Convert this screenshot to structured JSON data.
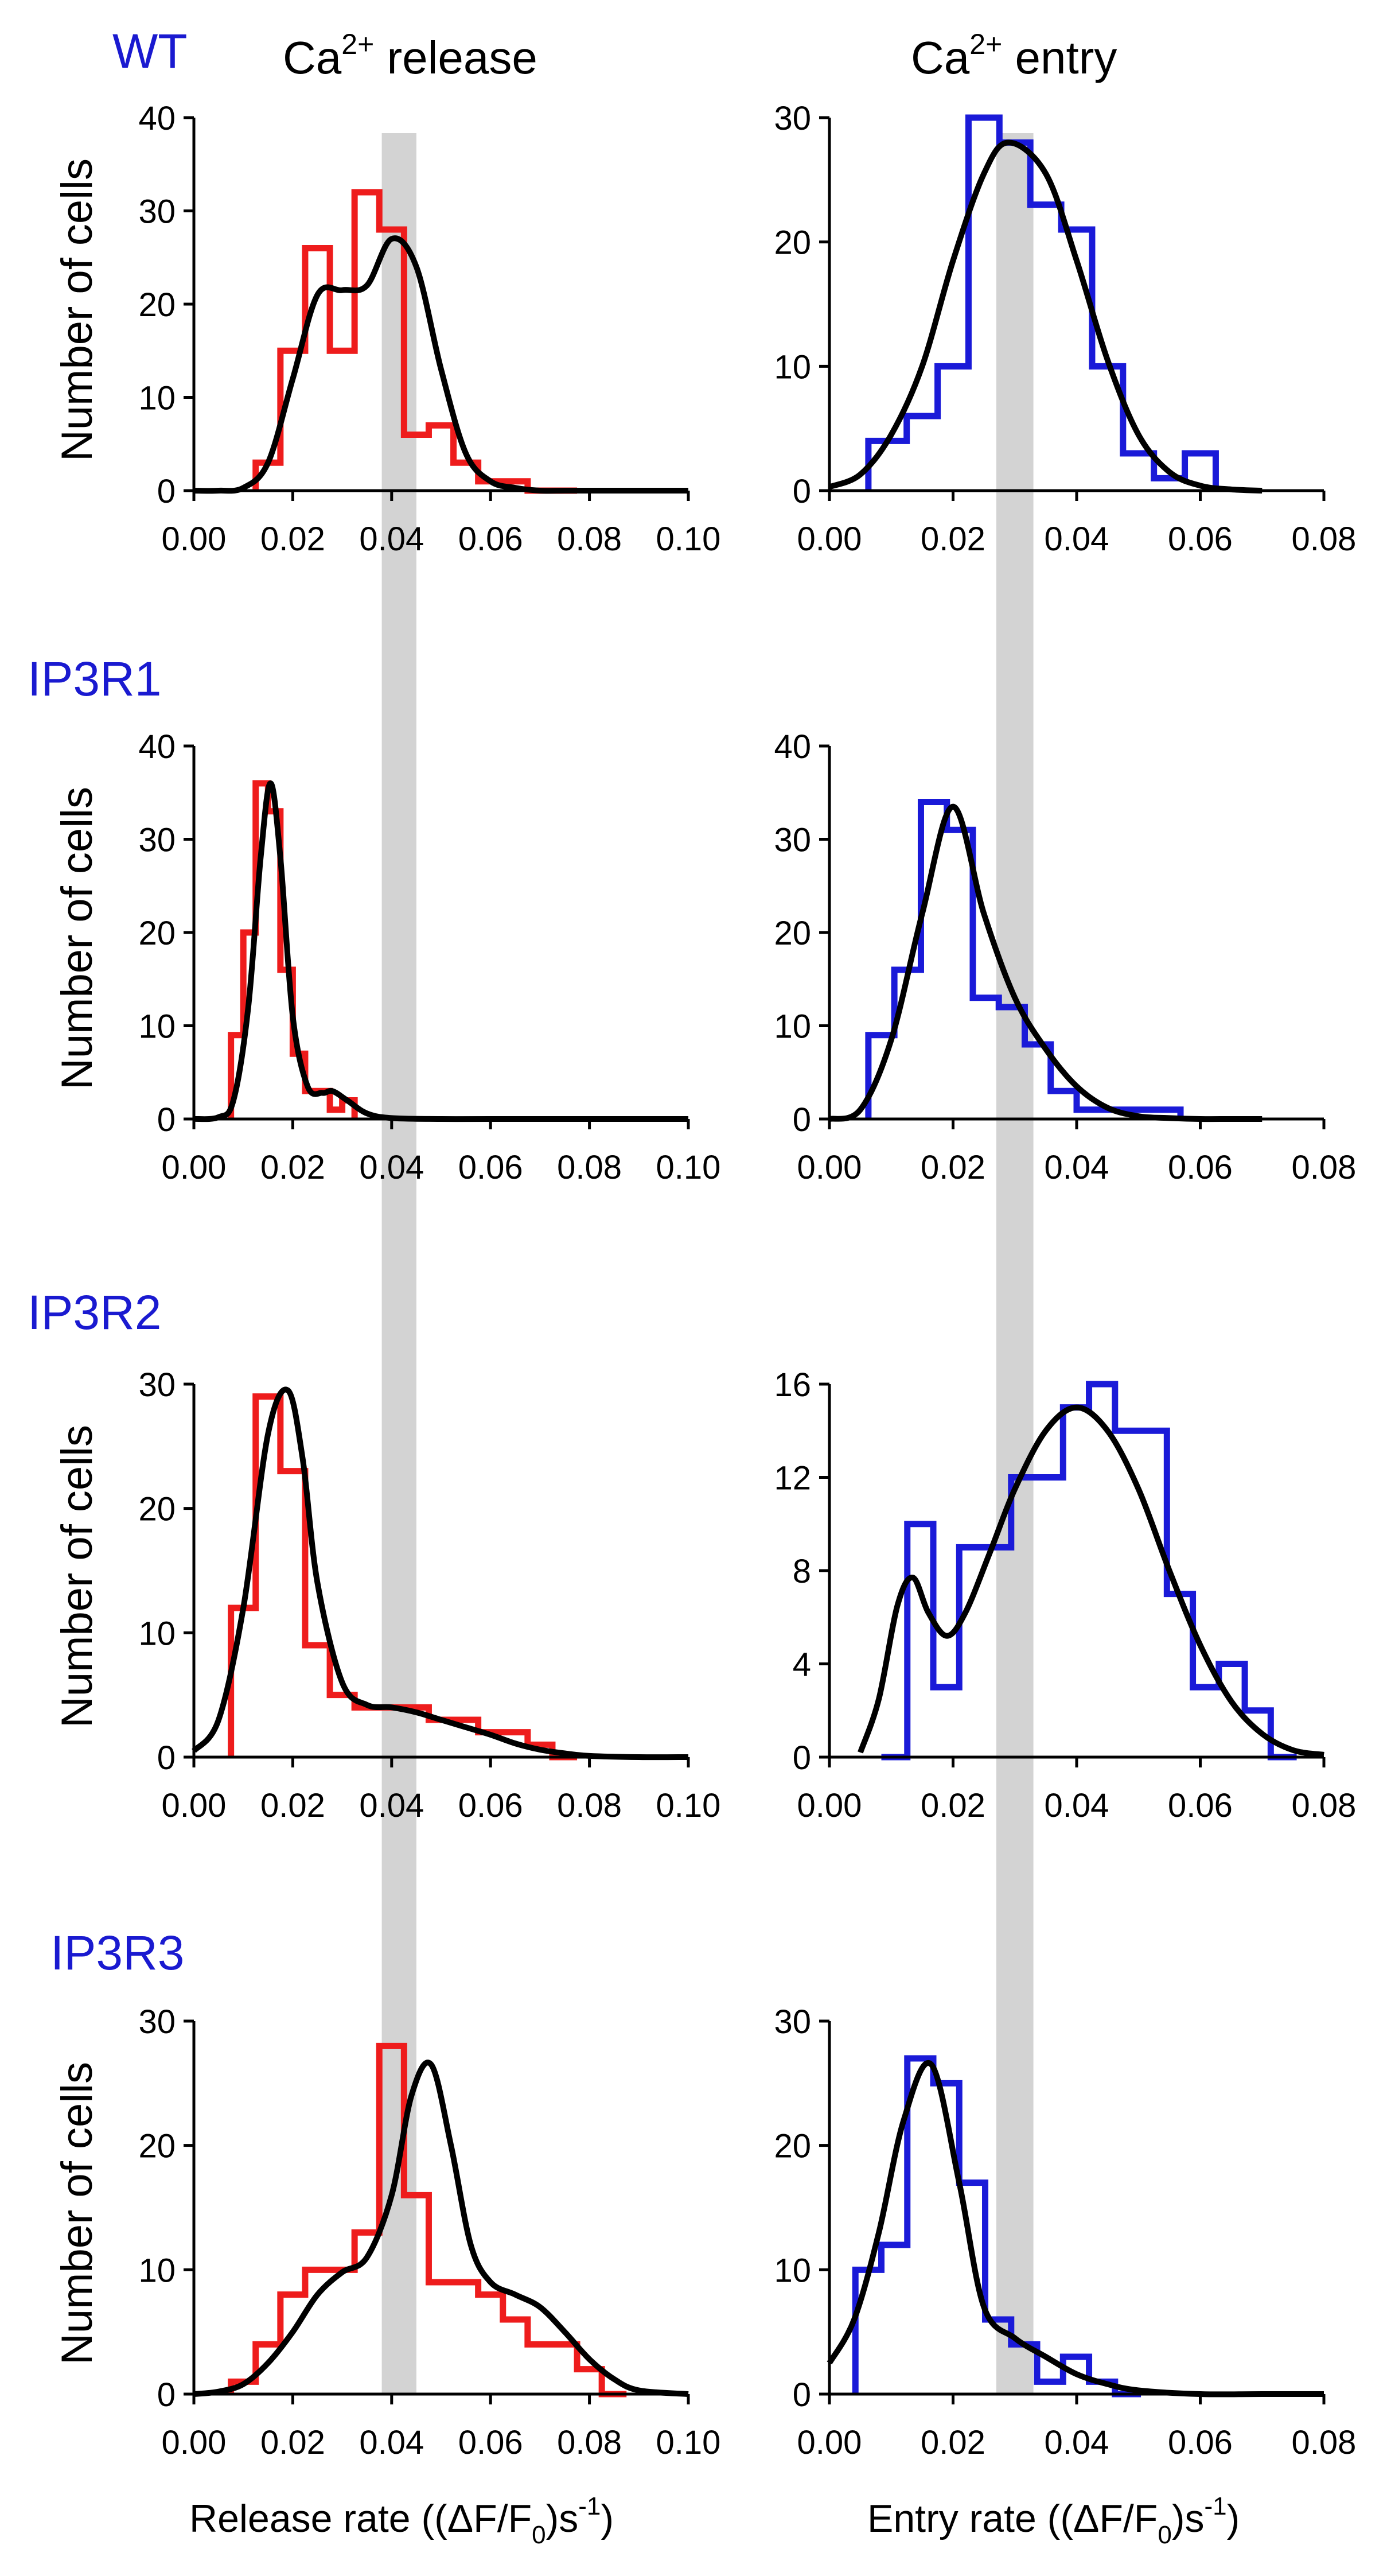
{
  "figure": {
    "column_titles": {
      "release": {
        "base": "Ca",
        "sup": "2+",
        "rest": " release"
      },
      "entry": {
        "base": "Ca",
        "sup": "2+",
        "rest": " entry"
      }
    },
    "row_labels": [
      "WT",
      "IP3R1",
      "IP3R2",
      "IP3R3"
    ],
    "ylabel": "Number of cells",
    "xlabel_release": {
      "a": "Release rate ((ΔF/F",
      "sub": "0",
      "b": ")s",
      "sup": "-1",
      "c": ")"
    },
    "xlabel_entry": {
      "a": "Entry rate ((ΔF/F",
      "sub": "0",
      "b": ")s",
      "sup": "-1",
      "c": ")"
    },
    "colors": {
      "release": "#ee1c1c",
      "entry": "#1a1ad8",
      "fit": "#000000",
      "band": "#d3d3d3",
      "row_label": "#1a1ad0"
    },
    "highlight_band": {
      "release": [
        0.038,
        0.045
      ],
      "entry": [
        0.027,
        0.033
      ]
    }
  },
  "chart_data": [
    {
      "type": "histogram",
      "row": "WT",
      "column": "Ca2+ release",
      "color": "release",
      "xlim": [
        0,
        0.1
      ],
      "ylim": [
        0,
        40
      ],
      "xticks": [
        "0.00",
        "0.02",
        "0.04",
        "0.06",
        "0.08",
        "0.10"
      ],
      "yticks": [
        "0",
        "10",
        "20",
        "30",
        "40"
      ],
      "xlabel": "",
      "ylabel": "Number of cells",
      "bins": [
        0.0125,
        0.0175,
        0.0225,
        0.0275,
        0.0325,
        0.0375,
        0.0425,
        0.0475,
        0.0525,
        0.0575,
        0.0625,
        0.0675,
        0.0725,
        0.0775
      ],
      "counts": [
        3,
        15,
        26,
        15,
        32,
        28,
        6,
        7,
        3,
        1,
        1,
        0,
        0
      ],
      "fit": {
        "x": [
          0.0,
          0.005,
          0.01,
          0.015,
          0.02,
          0.025,
          0.03,
          0.035,
          0.04,
          0.045,
          0.05,
          0.055,
          0.06,
          0.065,
          0.07,
          0.075,
          0.08,
          0.085,
          0.09,
          0.095,
          0.1
        ],
        "y": [
          0,
          0,
          0.3,
          3,
          12,
          21,
          21.5,
          22,
          27,
          24,
          13,
          4,
          1,
          0.3,
          0,
          0,
          0,
          0,
          0,
          0,
          0
        ]
      }
    },
    {
      "type": "histogram",
      "row": "WT",
      "column": "Ca2+ entry",
      "color": "entry",
      "xlim": [
        0,
        0.08
      ],
      "ylim": [
        0,
        30
      ],
      "xticks": [
        "0.00",
        "0.02",
        "0.04",
        "0.06",
        "0.08"
      ],
      "yticks": [
        "0",
        "10",
        "20",
        "30"
      ],
      "xlabel": "",
      "ylabel": "Number of cells",
      "bins": [
        0.0063,
        0.0125,
        0.0175,
        0.0225,
        0.0275,
        0.0325,
        0.0375,
        0.0425,
        0.0475,
        0.0525,
        0.0575,
        0.0625
      ],
      "counts": [
        4,
        6,
        10,
        30,
        28,
        23,
        21,
        10,
        3,
        1,
        3
      ],
      "fit": {
        "x": [
          0.0,
          0.005,
          0.01,
          0.015,
          0.02,
          0.025,
          0.029,
          0.035,
          0.04,
          0.045,
          0.05,
          0.055,
          0.06,
          0.065,
          0.07
        ],
        "y": [
          0.3,
          1.3,
          4.5,
          10,
          18.5,
          25.5,
          28,
          25.5,
          18.5,
          10.5,
          4.5,
          1.5,
          0.4,
          0.1,
          0
        ]
      }
    },
    {
      "type": "histogram",
      "row": "IP3R1",
      "column": "Ca2+ release",
      "color": "release",
      "xlim": [
        0,
        0.1
      ],
      "ylim": [
        0,
        40
      ],
      "xticks": [
        "0.00",
        "0.02",
        "0.04",
        "0.06",
        "0.08",
        "0.10"
      ],
      "yticks": [
        "0",
        "10",
        "20",
        "30",
        "40"
      ],
      "xlabel": "",
      "ylabel": "Number of cells",
      "bins": [
        0.0075,
        0.01,
        0.0125,
        0.015,
        0.0175,
        0.02,
        0.0225,
        0.025,
        0.0275,
        0.03,
        0.0325
      ],
      "counts": [
        9,
        20,
        36,
        33,
        16,
        7,
        3,
        3,
        1,
        2
      ],
      "fit": {
        "x": [
          0.0,
          0.005,
          0.008,
          0.011,
          0.0135,
          0.0155,
          0.0175,
          0.02,
          0.023,
          0.026,
          0.028,
          0.031,
          0.035,
          0.04,
          0.05,
          0.06,
          0.08,
          0.1
        ],
        "y": [
          0,
          0.2,
          2,
          12,
          28,
          36,
          28,
          11,
          3.5,
          2.8,
          3,
          2,
          0.6,
          0.1,
          0,
          0,
          0,
          0
        ]
      }
    },
    {
      "type": "histogram",
      "row": "IP3R1",
      "column": "Ca2+ entry",
      "color": "entry",
      "xlim": [
        0,
        0.08
      ],
      "ylim": [
        0,
        40
      ],
      "xticks": [
        "0.00",
        "0.02",
        "0.04",
        "0.06",
        "0.08"
      ],
      "yticks": [
        "0",
        "10",
        "20",
        "30",
        "40"
      ],
      "xlabel": "",
      "ylabel": "Number of cells",
      "bins": [
        0.0063,
        0.0105,
        0.0148,
        0.019,
        0.0232,
        0.0274,
        0.0316,
        0.0358,
        0.04,
        0.0442,
        0.0484,
        0.0526,
        0.0568
      ],
      "counts": [
        9,
        16,
        34,
        31,
        13,
        12,
        8,
        3,
        1,
        1,
        1,
        1
      ],
      "fit": {
        "x": [
          0.0,
          0.005,
          0.01,
          0.015,
          0.02,
          0.025,
          0.03,
          0.035,
          0.04,
          0.045,
          0.05,
          0.055,
          0.06,
          0.065,
          0.07
        ],
        "y": [
          0,
          1,
          8.5,
          22,
          33.5,
          22,
          13,
          7.5,
          3.5,
          1.2,
          0.3,
          0.1,
          0,
          0,
          0
        ]
      }
    },
    {
      "type": "histogram",
      "row": "IP3R2",
      "column": "Ca2+ release",
      "color": "release",
      "xlim": [
        0,
        0.1
      ],
      "ylim": [
        0,
        30
      ],
      "xticks": [
        "0.00",
        "0.02",
        "0.04",
        "0.06",
        "0.08",
        "0.10"
      ],
      "yticks": [
        "0",
        "10",
        "20",
        "30"
      ],
      "xlabel": "",
      "ylabel": "Number of cells",
      "bins": [
        0.0075,
        0.0125,
        0.0175,
        0.0225,
        0.0275,
        0.0325,
        0.0375,
        0.0425,
        0.0475,
        0.0525,
        0.0575,
        0.0625,
        0.0675,
        0.0725,
        0.0775
      ],
      "counts": [
        12,
        29,
        23,
        9,
        5,
        4,
        4,
        4,
        3,
        3,
        2,
        2,
        1,
        0
      ],
      "fit": {
        "x": [
          0.0,
          0.005,
          0.01,
          0.015,
          0.019,
          0.022,
          0.025,
          0.03,
          0.035,
          0.04,
          0.045,
          0.05,
          0.055,
          0.06,
          0.065,
          0.07,
          0.075,
          0.08,
          0.09,
          0.1
        ],
        "y": [
          0.5,
          3,
          12,
          26,
          29.5,
          24,
          14,
          6,
          4.2,
          4,
          3.6,
          3,
          2.4,
          1.8,
          1.1,
          0.6,
          0.3,
          0.1,
          0,
          0
        ]
      }
    },
    {
      "type": "histogram",
      "row": "IP3R2",
      "column": "Ca2+ entry",
      "color": "entry",
      "xlim": [
        0,
        0.08
      ],
      "ylim": [
        0,
        16
      ],
      "xticks": [
        "0.00",
        "0.02",
        "0.04",
        "0.06",
        "0.08"
      ],
      "yticks": [
        "0",
        "4",
        "8",
        "12",
        "16"
      ],
      "xlabel": "",
      "ylabel": "Number of cells",
      "bins": [
        0.0084,
        0.0126,
        0.0168,
        0.021,
        0.0252,
        0.0294,
        0.0336,
        0.0378,
        0.042,
        0.0462,
        0.0504,
        0.0546,
        0.0588,
        0.063,
        0.0672,
        0.0714,
        0.0756
      ],
      "counts": [
        0,
        10,
        3,
        9,
        9,
        12,
        12,
        15,
        16,
        14,
        14,
        7,
        3,
        4,
        2,
        0
      ],
      "fit": {
        "x": [
          0.005,
          0.008,
          0.011,
          0.0135,
          0.016,
          0.019,
          0.022,
          0.026,
          0.03,
          0.035,
          0.04,
          0.045,
          0.05,
          0.055,
          0.06,
          0.065,
          0.07,
          0.075,
          0.08
        ],
        "y": [
          0.2,
          2.5,
          6.5,
          7.7,
          6.2,
          5.2,
          6.2,
          8.8,
          11.5,
          14,
          15,
          14,
          11.5,
          8,
          4.8,
          2.4,
          1,
          0.3,
          0.1
        ]
      }
    },
    {
      "type": "histogram",
      "row": "IP3R3",
      "column": "Ca2+ release",
      "color": "release",
      "xlim": [
        0,
        0.1
      ],
      "ylim": [
        0,
        30
      ],
      "xticks": [
        "0.00",
        "0.02",
        "0.04",
        "0.06",
        "0.08",
        "0.10"
      ],
      "yticks": [
        "0",
        "10",
        "20",
        "30"
      ],
      "xlabel": "Release rate",
      "ylabel": "Number of cells",
      "bins": [
        0.0075,
        0.0125,
        0.0175,
        0.0225,
        0.0275,
        0.0325,
        0.0375,
        0.0425,
        0.0475,
        0.0525,
        0.0575,
        0.0625,
        0.0675,
        0.0725,
        0.0775,
        0.0825,
        0.0875
      ],
      "counts": [
        1,
        4,
        8,
        10,
        10,
        13,
        28,
        16,
        9,
        9,
        8,
        6,
        4,
        4,
        2,
        0
      ],
      "fit": {
        "x": [
          0.0,
          0.005,
          0.01,
          0.015,
          0.02,
          0.025,
          0.03,
          0.035,
          0.04,
          0.044,
          0.048,
          0.052,
          0.056,
          0.06,
          0.065,
          0.07,
          0.075,
          0.08,
          0.085,
          0.09,
          0.1
        ],
        "y": [
          0,
          0.2,
          0.8,
          2.5,
          5,
          8,
          9.8,
          11,
          16,
          24,
          26.5,
          20,
          12,
          9,
          8,
          7,
          5,
          2.8,
          1.2,
          0.3,
          0
        ]
      }
    },
    {
      "type": "histogram",
      "row": "IP3R3",
      "column": "Ca2+ entry",
      "color": "entry",
      "xlim": [
        0,
        0.08
      ],
      "ylim": [
        0,
        30
      ],
      "xticks": [
        "0.00",
        "0.02",
        "0.04",
        "0.06",
        "0.08"
      ],
      "yticks": [
        "0",
        "10",
        "20",
        "30"
      ],
      "xlabel": "Entry rate",
      "ylabel": "Number of cells",
      "bins": [
        0.0042,
        0.0084,
        0.0126,
        0.0168,
        0.021,
        0.0252,
        0.0294,
        0.0336,
        0.0378,
        0.042,
        0.0462,
        0.0504
      ],
      "counts": [
        10,
        12,
        27,
        25,
        17,
        6,
        4,
        1,
        3,
        1,
        0
      ],
      "fit": {
        "x": [
          0.0,
          0.004,
          0.008,
          0.012,
          0.0165,
          0.021,
          0.025,
          0.03,
          0.035,
          0.04,
          0.045,
          0.05,
          0.06,
          0.07,
          0.08
        ],
        "y": [
          2.5,
          6,
          13,
          22,
          26.5,
          17,
          7,
          4.5,
          3,
          1.6,
          0.8,
          0.3,
          0,
          0,
          0
        ]
      }
    }
  ]
}
